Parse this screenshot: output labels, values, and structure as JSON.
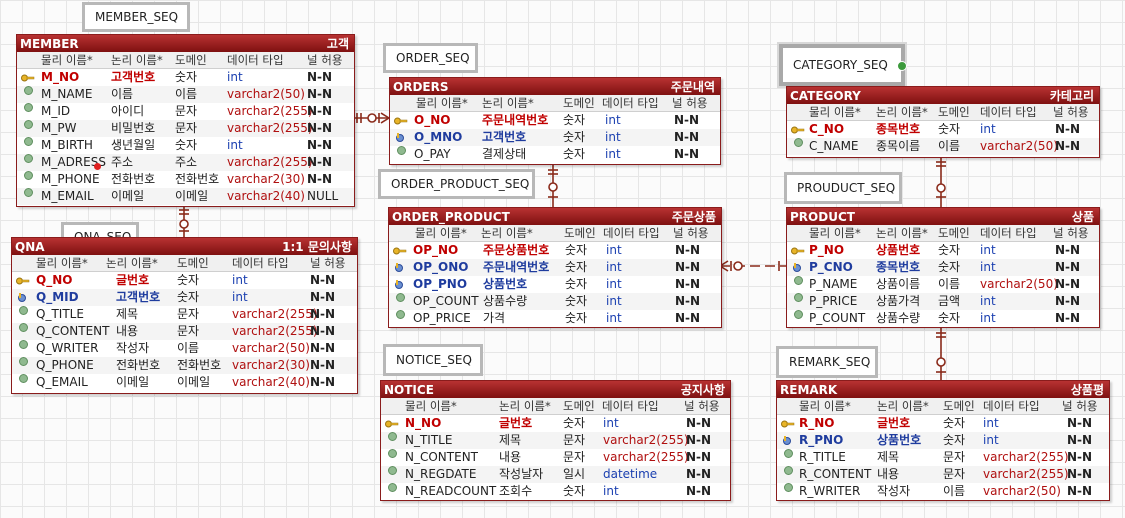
{
  "sequences": {
    "member": "MEMBER_SEQ",
    "qna": "QNA_SEQ",
    "order": "ORDER_SEQ",
    "order_product": "ORDER_PRODUCT_SEQ",
    "notice": "NOTICE_SEQ",
    "category": "CATEGORY_SEQ",
    "product": "PROUDUCT_SEQ",
    "remark": "REMARK_SEQ"
  },
  "column_headers": {
    "physical": "물리 이름*",
    "logical": "논리 이름*",
    "domain": "도메인",
    "datatype": "데이터 타입",
    "nullable": "널 허용"
  },
  "tables": {
    "member": {
      "name": "MEMBER",
      "logical": "고객",
      "rows": [
        {
          "phys": "M_NO",
          "log": "고객번호",
          "dom": "숫자",
          "type": "int",
          "null": "N-N"
        },
        {
          "phys": "M_NAME",
          "log": "이름",
          "dom": "이름",
          "type": "varchar2(50)",
          "null": "N-N"
        },
        {
          "phys": "M_ID",
          "log": "아이디",
          "dom": "문자",
          "type": "varchar2(255)",
          "null": "N-N"
        },
        {
          "phys": "M_PW",
          "log": "비밀번호",
          "dom": "문자",
          "type": "varchar2(255)",
          "null": "N-N"
        },
        {
          "phys": "M_BIRTH",
          "log": "생년월일",
          "dom": "숫자",
          "type": "int",
          "null": "N-N"
        },
        {
          "phys": "M_ADRESS",
          "log": "주소",
          "dom": "주소",
          "type": "varchar2(255)",
          "null": "N-N"
        },
        {
          "phys": "M_PHONE",
          "log": "전화번호",
          "dom": "전화번호",
          "type": "varchar2(30)",
          "null": "N-N"
        },
        {
          "phys": "M_EMAIL",
          "log": "이메일",
          "dom": "이메일",
          "type": "varchar2(40)",
          "null": "NULL"
        }
      ]
    },
    "qna": {
      "name": "QNA",
      "logical": "1:1 문의사항",
      "rows": [
        {
          "phys": "Q_NO",
          "log": "글번호",
          "dom": "숫자",
          "type": "int",
          "null": "N-N"
        },
        {
          "phys": "Q_MID",
          "log": "고객번호",
          "dom": "숫자",
          "type": "int",
          "null": "N-N"
        },
        {
          "phys": "Q_TITLE",
          "log": "제목",
          "dom": "문자",
          "type": "varchar2(255)",
          "null": "N-N"
        },
        {
          "phys": "Q_CONTENT",
          "log": "내용",
          "dom": "문자",
          "type": "varchar2(255)",
          "null": "N-N"
        },
        {
          "phys": "Q_WRITER",
          "log": "작성자",
          "dom": "이름",
          "type": "varchar2(50)",
          "null": "N-N"
        },
        {
          "phys": "Q_PHONE",
          "log": "전화번호",
          "dom": "전화번호",
          "type": "varchar2(30)",
          "null": "N-N"
        },
        {
          "phys": "Q_EMAIL",
          "log": "이메일",
          "dom": "이메일",
          "type": "varchar2(40)",
          "null": "N-N"
        }
      ]
    },
    "orders": {
      "name": "ORDERS",
      "logical": "주문내역",
      "rows": [
        {
          "phys": "O_NO",
          "log": "주문내역번호",
          "dom": "숫자",
          "type": "int",
          "null": "N-N"
        },
        {
          "phys": "O_MNO",
          "log": "고객번호",
          "dom": "숫자",
          "type": "int",
          "null": "N-N"
        },
        {
          "phys": "O_PAY",
          "log": "결제상태",
          "dom": "숫자",
          "type": "int",
          "null": "N-N"
        }
      ]
    },
    "order_product": {
      "name": "ORDER_PRODUCT",
      "logical": "주문상품",
      "rows": [
        {
          "phys": "OP_NO",
          "log": "주문상품번호",
          "dom": "숫자",
          "type": "int",
          "null": "N-N"
        },
        {
          "phys": "OP_ONO",
          "log": "주문내역번호",
          "dom": "숫자",
          "type": "int",
          "null": "N-N"
        },
        {
          "phys": "OP_PNO",
          "log": "상품번호",
          "dom": "숫자",
          "type": "int",
          "null": "N-N"
        },
        {
          "phys": "OP_COUNT",
          "log": "상품수량",
          "dom": "숫자",
          "type": "int",
          "null": "N-N"
        },
        {
          "phys": "OP_PRICE",
          "log": "가격",
          "dom": "숫자",
          "type": "int",
          "null": "N-N"
        }
      ]
    },
    "notice": {
      "name": "NOTICE",
      "logical": "공지사항",
      "rows": [
        {
          "phys": "N_NO",
          "log": "글번호",
          "dom": "숫자",
          "type": "int",
          "null": "N-N"
        },
        {
          "phys": "N_TITLE",
          "log": "제목",
          "dom": "문자",
          "type": "varchar2(255)",
          "null": "N-N"
        },
        {
          "phys": "N_CONTENT",
          "log": "내용",
          "dom": "문자",
          "type": "varchar2(255)",
          "null": "N-N"
        },
        {
          "phys": "N_REGDATE",
          "log": "작성날자",
          "dom": "일시",
          "type": "datetime",
          "null": "N-N"
        },
        {
          "phys": "N_READCOUNT",
          "log": "조회수",
          "dom": "숫자",
          "type": "int",
          "null": "N-N"
        }
      ]
    },
    "category": {
      "name": "CATEGORY",
      "logical": "카테고리",
      "rows": [
        {
          "phys": "C_NO",
          "log": "종목번호",
          "dom": "숫자",
          "type": "int",
          "null": "N-N"
        },
        {
          "phys": "C_NAME",
          "log": "종목이름",
          "dom": "이름",
          "type": "varchar2(50)",
          "null": "N-N"
        }
      ]
    },
    "product": {
      "name": "PRODUCT",
      "logical": "상품",
      "rows": [
        {
          "phys": "P_NO",
          "log": "상품번호",
          "dom": "숫자",
          "type": "int",
          "null": "N-N"
        },
        {
          "phys": "P_CNO",
          "log": "종목번호",
          "dom": "숫자",
          "type": "int",
          "null": "N-N"
        },
        {
          "phys": "P_NAME",
          "log": "상품이름",
          "dom": "이름",
          "type": "varchar2(50)",
          "null": "N-N"
        },
        {
          "phys": "P_PRICE",
          "log": "상품가격",
          "dom": "금액",
          "type": "int",
          "null": "N-N"
        },
        {
          "phys": "P_COUNT",
          "log": "상품수량",
          "dom": "숫자",
          "type": "int",
          "null": "N-N"
        }
      ]
    },
    "remark": {
      "name": "REMARK",
      "logical": "상품평",
      "rows": [
        {
          "phys": "R_NO",
          "log": "글번호",
          "dom": "숫자",
          "type": "int",
          "null": "N-N"
        },
        {
          "phys": "R_PNO",
          "log": "상품번호",
          "dom": "숫자",
          "type": "int",
          "null": "N-N"
        },
        {
          "phys": "R_TITLE",
          "log": "제목",
          "dom": "문자",
          "type": "varchar2(255)",
          "null": "N-N"
        },
        {
          "phys": "R_CONTENT",
          "log": "내용",
          "dom": "문자",
          "type": "varchar2(255)",
          "null": "N-N"
        },
        {
          "phys": "R_WRITER",
          "log": "작성자",
          "dom": "이름",
          "type": "varchar2(50)",
          "null": "N-N"
        }
      ]
    }
  }
}
